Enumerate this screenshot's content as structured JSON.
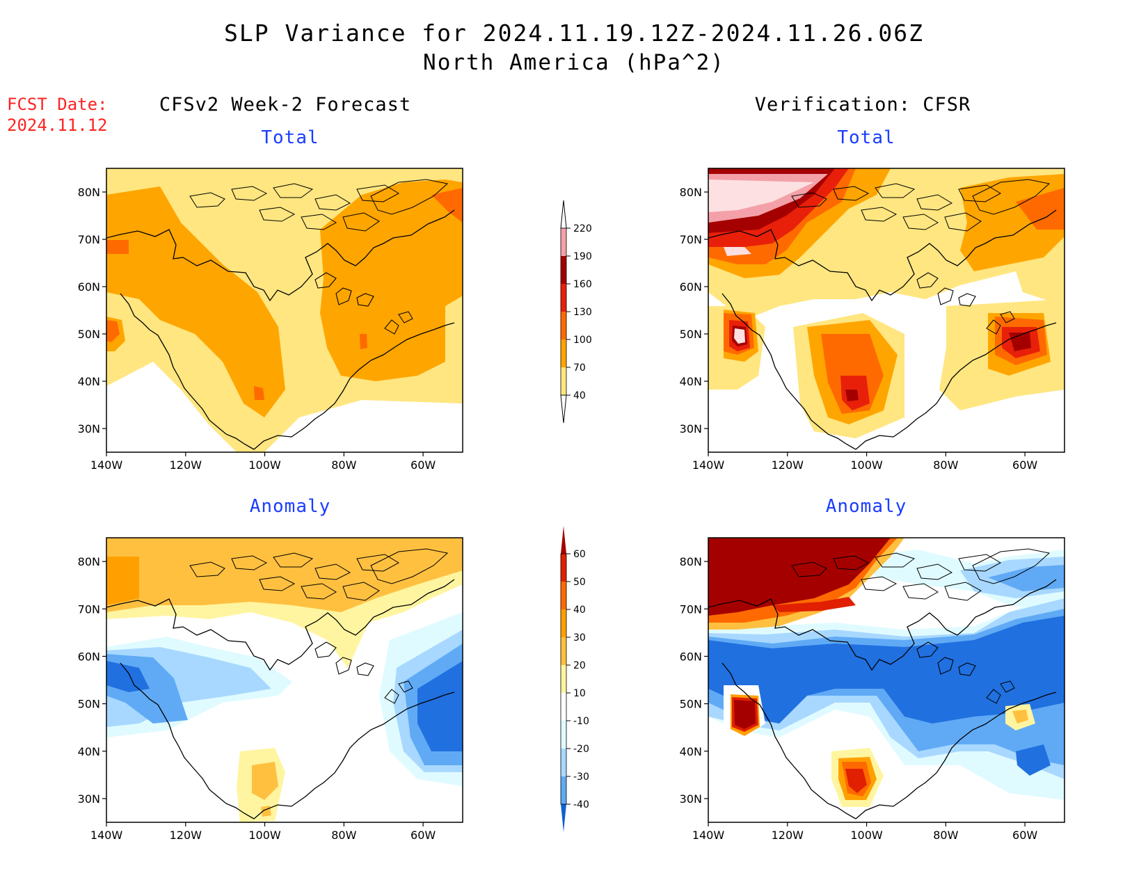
{
  "header": {
    "title": "SLP Variance for 2024.11.19.12Z-2024.11.26.06Z",
    "subtitle": "North America (hPa^2)",
    "fcst_line1": "FCST Date:",
    "fcst_line2": "2024.11.12",
    "left_column_title": "CFSv2 Week-2 Forecast",
    "right_column_title": "Verification: CFSR"
  },
  "panels": {
    "top_left_title": "Total",
    "top_right_title": "Total",
    "bottom_left_title": "Anomaly",
    "bottom_right_title": "Anomaly"
  },
  "axes": {
    "lat_labels": [
      "80N",
      "70N",
      "60N",
      "50N",
      "40N",
      "30N"
    ],
    "lon_labels": [
      "140W",
      "120W",
      "100W",
      "80W",
      "60W"
    ]
  },
  "colorbars": {
    "total": {
      "levels": [
        "40",
        "70",
        "100",
        "130",
        "160",
        "190",
        "220"
      ],
      "colors": [
        "#ffe680",
        "#ffa500",
        "#ff6a00",
        "#e8200a",
        "#a50000",
        "#f4a0a8",
        "#fde0e2"
      ]
    },
    "anomaly": {
      "levels": [
        "60",
        "50",
        "40",
        "30",
        "20",
        "10",
        "-10",
        "-20",
        "-30",
        "-40"
      ],
      "colors_top_to_bottom": [
        "#a50000",
        "#e02000",
        "#ff6a00",
        "#ffa000",
        "#ffc040",
        "#fff5a0",
        "#ffffff",
        "#e0fbff",
        "#a8d8ff",
        "#60aaf5",
        "#2070e0",
        "#1060d0"
      ]
    }
  }
}
